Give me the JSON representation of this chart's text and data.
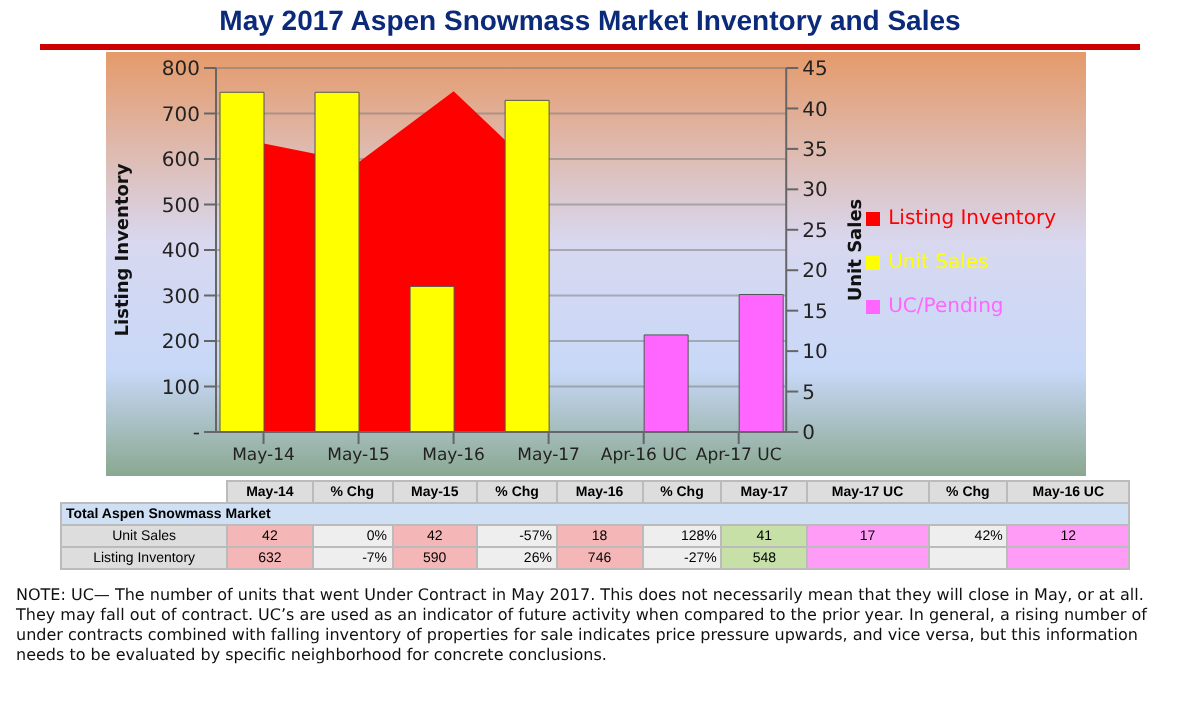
{
  "chart_data": {
    "type": "bar",
    "title": "May 2017 Aspen Snowmass Market Inventory and Sales",
    "categories": [
      "May-14",
      "May-15",
      "May-16",
      "May-17",
      "Apr-16 UC",
      "Apr-17 UC"
    ],
    "series": [
      {
        "name": "Listing Inventory",
        "type": "area",
        "color": "#ff0000",
        "values": [
          632,
          590,
          746,
          548,
          null,
          null
        ]
      },
      {
        "name": "Unit Sales",
        "axis": "y2",
        "color": "#ffff00",
        "values": [
          42,
          42,
          18,
          41,
          null,
          null
        ]
      },
      {
        "name": "UC/Pending",
        "axis": "y2",
        "color": "#ff66ff",
        "values": [
          null,
          null,
          null,
          null,
          12,
          17
        ]
      }
    ],
    "ylabel": "Listing Inventory",
    "y2label": "Unit Sales",
    "ylim": [
      0,
      800
    ],
    "yticks": [
      {
        "value": 0,
        "label": "-"
      },
      100,
      200,
      300,
      400,
      500,
      600,
      700,
      800
    ],
    "y2lim": [
      0,
      45
    ],
    "y2ticks": [
      0,
      5,
      10,
      15,
      20,
      25,
      30,
      35,
      40,
      45
    ],
    "grid": "y",
    "legend": "right",
    "annotations": [
      "Total Aspen Snowmass Market",
      "% Chg",
      "May-17 UC",
      "May-16 UC",
      "42",
      "0%",
      "42",
      "-57%",
      "18",
      "128%",
      "41",
      "17",
      "42%",
      "12",
      "632",
      "-7%",
      "590",
      "26%",
      "746",
      "-27%",
      "548",
      "NOTE: UC— The number of units that went Under Contract in May 2017. This does not necessarily mean that they will close in May, or at all. They may fall out of contract.  UC’s are used as an indicator of future activity when compared to the prior year. In general, a rising number of under contracts combined with falling inventory of properties for sale indicates price pressure upwards, and vice versa, but this information needs to be evaluated by specific neighborhood for concrete conclusions."
    ]
  }
}
